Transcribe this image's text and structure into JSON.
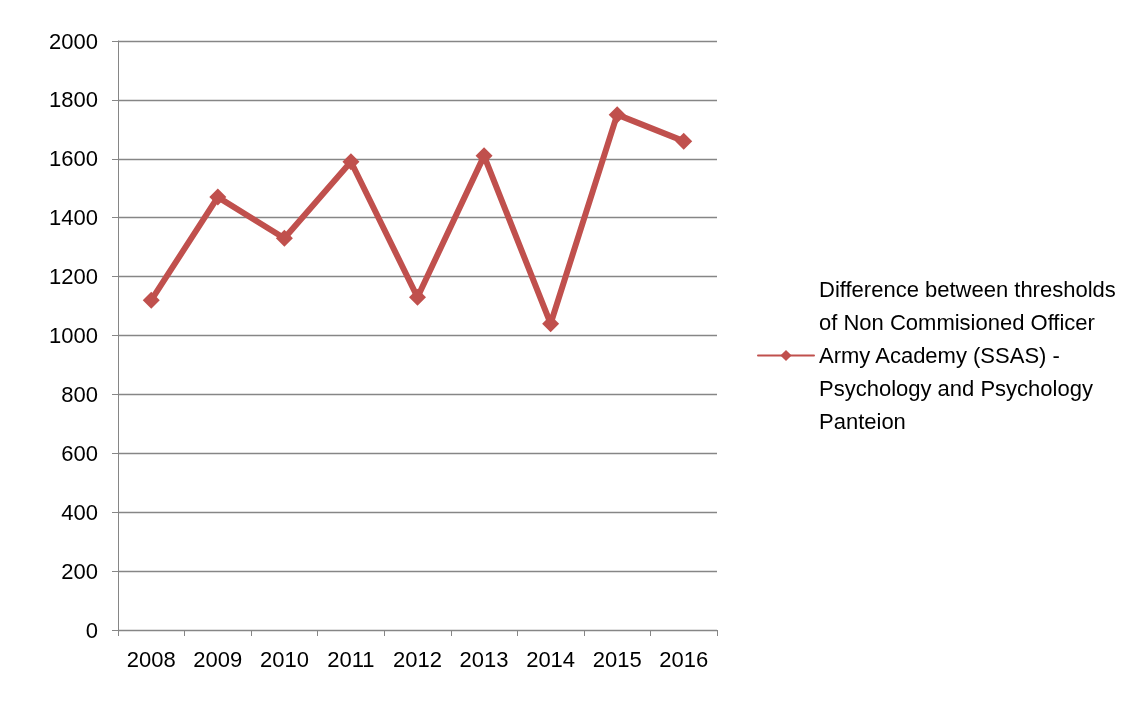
{
  "chart_data": {
    "type": "line",
    "categories": [
      "2008",
      "2009",
      "2010",
      "2011",
      "2012",
      "2013",
      "2014",
      "2015",
      "2016"
    ],
    "series": [
      {
        "name": "Difference between thresholds of Non Commisioned Officer Army Academy (SSAS) - Psychology and Psychology Panteion",
        "color": "#c0504d",
        "values": [
          1120,
          1470,
          1330,
          1590,
          1130,
          1610,
          1040,
          1750,
          1660
        ]
      }
    ],
    "ylim": [
      0,
      2000
    ],
    "yticks": [
      0,
      200,
      400,
      600,
      800,
      1000,
      1200,
      1400,
      1600,
      1800,
      2000
    ],
    "grid": "y",
    "legend": "right",
    "marker": "diamond",
    "line_style": "solid"
  }
}
